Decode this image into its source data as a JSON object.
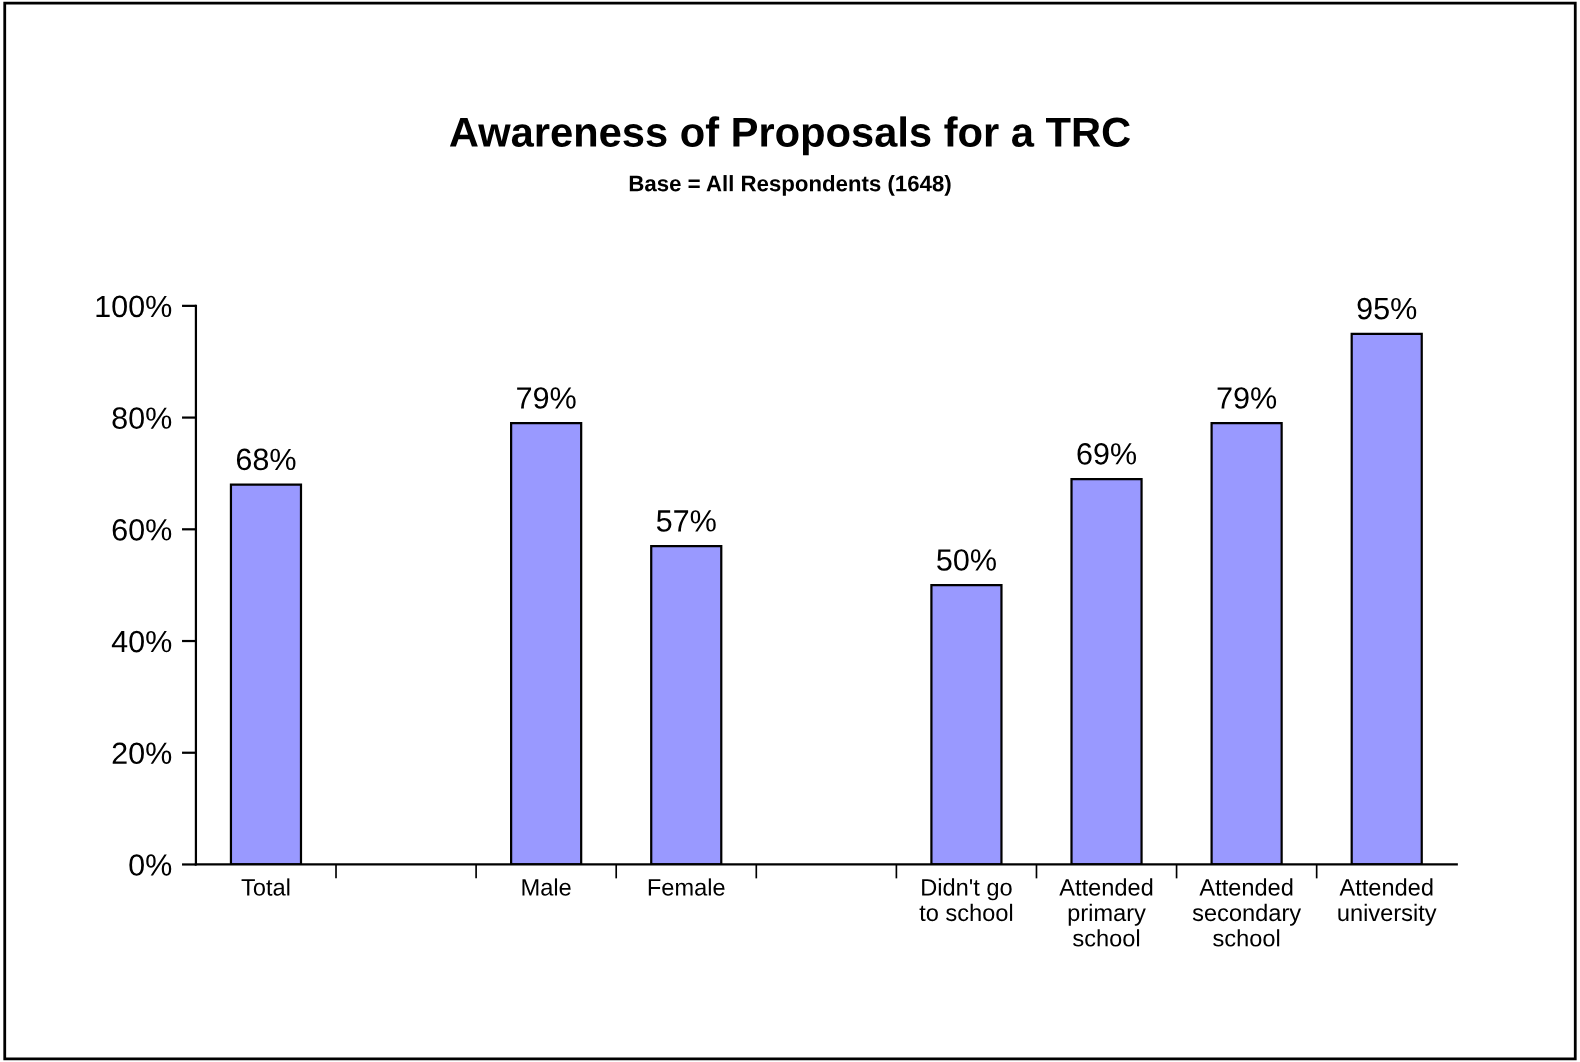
{
  "chart_data": {
    "type": "bar",
    "title": "Awareness of Proposals for a TRC",
    "subtitle": "Base = All Respondents (1648)",
    "categories": [
      "Total",
      null,
      "Male",
      "Female",
      null,
      "Didn't go\nto school",
      "Attended\nprimary\nschool",
      "Attended\nsecondary\nschool",
      "Attended\nuniversity"
    ],
    "values": [
      68,
      null,
      79,
      57,
      null,
      50,
      69,
      79,
      95
    ],
    "value_labels": [
      "68%",
      null,
      "79%",
      "57%",
      null,
      "50%",
      "69%",
      "79%",
      "95%"
    ],
    "color": "#9999ff",
    "ylim": [
      0,
      100
    ],
    "yticks": [
      {
        "value": 0,
        "label": "0%"
      },
      {
        "value": 20,
        "label": "20%"
      },
      {
        "value": 40,
        "label": "40%"
      },
      {
        "value": 60,
        "label": "60%"
      },
      {
        "value": 80,
        "label": "80%"
      },
      {
        "value": 100,
        "label": "100%"
      }
    ],
    "grid": false,
    "legend": false
  }
}
